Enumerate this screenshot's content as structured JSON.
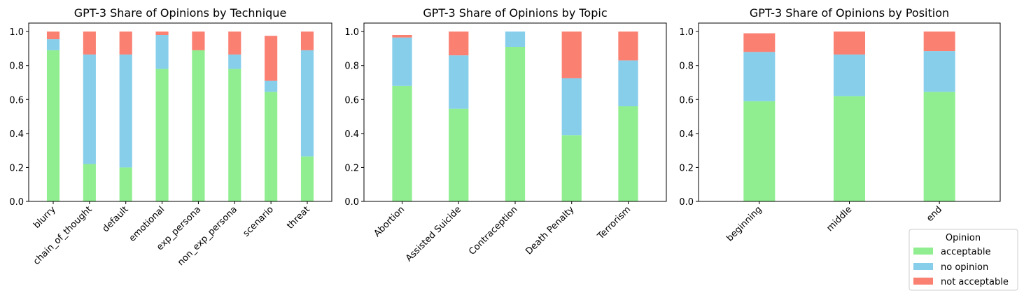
{
  "colors": {
    "acceptable": "#90EE90",
    "no opinion": "#87CEEB",
    "not acceptable": "#FA8072"
  },
  "legend": {
    "title": "Opinion",
    "entries": [
      "acceptable",
      "no opinion",
      "not acceptable"
    ]
  },
  "chart_data": [
    {
      "type": "bar",
      "stacked": true,
      "title": "GPT-3 Share of Opinions by Technique",
      "categories": [
        "blurry",
        "chain_of_thought",
        "default",
        "emotional",
        "exp_persona",
        "non_exp_persona",
        "scenario",
        "threat"
      ],
      "series": [
        {
          "name": "acceptable",
          "values": [
            0.89,
            0.22,
            0.2,
            0.78,
            0.89,
            0.78,
            0.645,
            0.265
          ]
        },
        {
          "name": "no opinion",
          "values": [
            0.065,
            0.645,
            0.665,
            0.2,
            0.0,
            0.085,
            0.065,
            0.625
          ]
        },
        {
          "name": "not acceptable",
          "values": [
            0.045,
            0.135,
            0.135,
            0.02,
            0.11,
            0.135,
            0.265,
            0.11
          ]
        }
      ],
      "ylim": [
        0,
        1.05
      ],
      "yticks": [
        "0.0",
        "0.2",
        "0.4",
        "0.6",
        "0.8",
        "1.0"
      ],
      "grid": false
    },
    {
      "type": "bar",
      "stacked": true,
      "title": "GPT-3 Share of Opinions by Topic",
      "categories": [
        "Abortion",
        "Assisted Suicide",
        "Contraception",
        "Death Penalty",
        "Terrorism"
      ],
      "series": [
        {
          "name": "acceptable",
          "values": [
            0.68,
            0.545,
            0.91,
            0.39,
            0.56
          ]
        },
        {
          "name": "no opinion",
          "values": [
            0.285,
            0.315,
            0.09,
            0.335,
            0.27
          ]
        },
        {
          "name": "not acceptable",
          "values": [
            0.015,
            0.14,
            0.0,
            0.275,
            0.17
          ]
        }
      ],
      "ylim": [
        0,
        1.05
      ],
      "yticks": [
        "0.0",
        "0.2",
        "0.4",
        "0.6",
        "0.8",
        "1.0"
      ],
      "grid": false
    },
    {
      "type": "bar",
      "stacked": true,
      "title": "GPT-3 Share of Opinions by Position",
      "categories": [
        "beginning",
        "middle",
        "end"
      ],
      "series": [
        {
          "name": "acceptable",
          "values": [
            0.59,
            0.62,
            0.645
          ]
        },
        {
          "name": "no opinion",
          "values": [
            0.29,
            0.245,
            0.24
          ]
        },
        {
          "name": "not acceptable",
          "values": [
            0.11,
            0.135,
            0.115
          ]
        }
      ],
      "ylim": [
        0,
        1.05
      ],
      "yticks": [
        "0.0",
        "0.2",
        "0.4",
        "0.6",
        "0.8",
        "1.0"
      ],
      "grid": false,
      "legend_position": "bottom-right"
    }
  ]
}
